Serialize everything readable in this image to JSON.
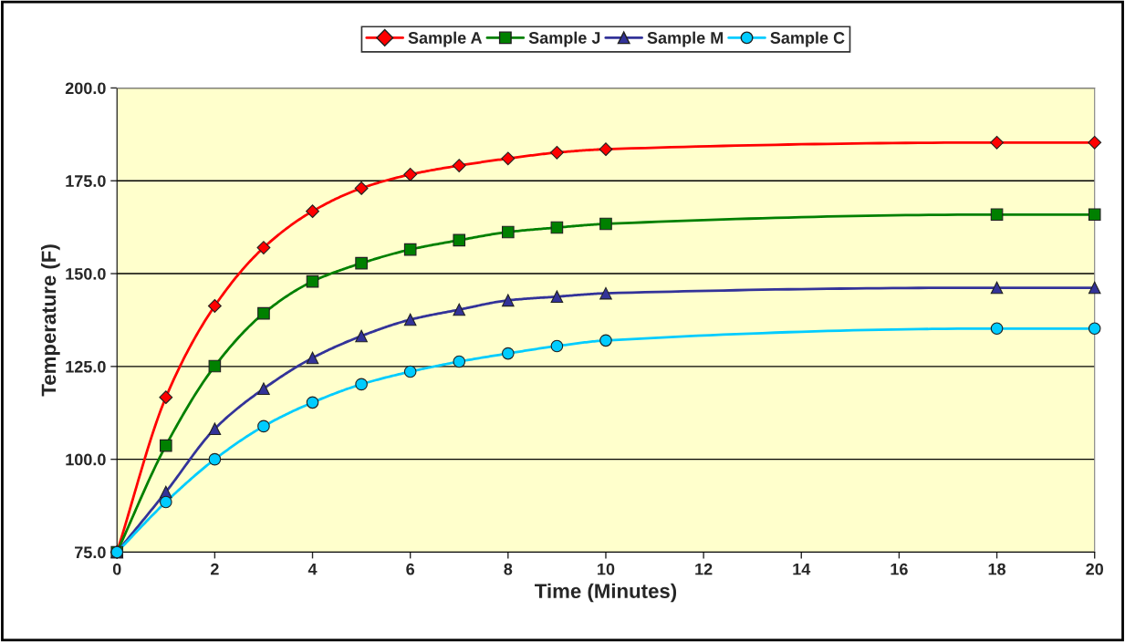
{
  "chart_data": {
    "type": "line",
    "xlabel": "Time (Minutes)",
    "ylabel": "Temperature (F)",
    "x": [
      0,
      1,
      2,
      3,
      4,
      5,
      6,
      7,
      8,
      9,
      10,
      18,
      20
    ],
    "series": [
      {
        "name": "Sample A",
        "color": "#ff0000",
        "marker": "diamond",
        "values": [
          75,
          116.7,
          141.3,
          157,
          166.8,
          173,
          176.7,
          179.1,
          181,
          182.6,
          183.5,
          185.3,
          185.3
        ]
      },
      {
        "name": "Sample J",
        "color": "#008000",
        "marker": "square",
        "values": [
          75,
          103.7,
          125.1,
          139.3,
          147.9,
          152.8,
          156.5,
          159,
          161.2,
          162.4,
          163.4,
          165.9,
          165.9
        ]
      },
      {
        "name": "Sample M",
        "color": "#333399",
        "marker": "triangle",
        "values": [
          75,
          91.2,
          108.2,
          119,
          127.3,
          133.2,
          137.6,
          140.3,
          142.8,
          143.8,
          144.7,
          146.2,
          146.2
        ]
      },
      {
        "name": "Sample C",
        "color": "#00ccff",
        "marker": "circle",
        "values": [
          75,
          88.5,
          100,
          108.9,
          115.3,
          120.2,
          123.6,
          126.3,
          128.5,
          130.5,
          132,
          135.2,
          135.2
        ]
      }
    ],
    "xlim": [
      0,
      20
    ],
    "xticks": [
      0,
      2,
      4,
      6,
      8,
      10,
      12,
      14,
      16,
      18,
      20
    ],
    "ylim": [
      75,
      200
    ],
    "yticks": [
      {
        "value": 75,
        "label": "75.0"
      },
      {
        "value": 100,
        "label": "100.0"
      },
      {
        "value": 125,
        "label": "125.0"
      },
      {
        "value": 150,
        "label": "150.0"
      },
      {
        "value": 175,
        "label": "175.0"
      },
      {
        "value": 200,
        "label": "200.0"
      }
    ],
    "grid": "y",
    "legend": "top",
    "line_style": "solid"
  }
}
